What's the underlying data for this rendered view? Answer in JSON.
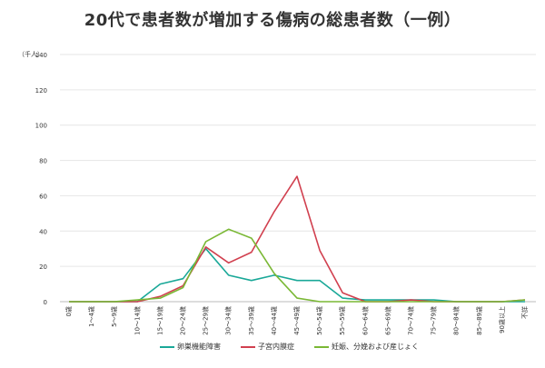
{
  "chart_data": {
    "type": "line",
    "title": "20代で患者数が増加する傷病の総患者数（一例）",
    "yunit": "（千人）",
    "ylim": [
      0,
      140
    ],
    "yticks": [
      0,
      20,
      40,
      60,
      80,
      100,
      120,
      140
    ],
    "grid": true,
    "legend_position": "bottom",
    "categories": [
      "0歳",
      "1〜4歳",
      "5〜9歳",
      "10〜14歳",
      "15〜19歳",
      "20〜24歳",
      "25〜29歳",
      "30〜34歳",
      "35〜39歳",
      "40〜44歳",
      "45〜49歳",
      "50〜54歳",
      "55〜59歳",
      "60〜64歳",
      "65〜69歳",
      "70〜74歳",
      "75〜79歳",
      "80〜84歳",
      "85〜89歳",
      "90歳以上",
      "不詳"
    ],
    "series": [
      {
        "name": "卵巣機能障害",
        "color": "#1aa898",
        "values": [
          0,
          0,
          0,
          0,
          10,
          13,
          30,
          15,
          12,
          15,
          12,
          12,
          2,
          1,
          1,
          1,
          1,
          0,
          0,
          0,
          0
        ]
      },
      {
        "name": "子宮内膜症",
        "color": "#d1404f",
        "values": [
          0,
          0,
          0,
          0,
          3,
          9,
          31,
          22,
          28,
          51,
          71,
          29,
          5,
          0,
          0,
          1,
          0,
          0,
          0,
          0,
          1
        ]
      },
      {
        "name": "妊娠、分娩および産じょく",
        "color": "#7ab835",
        "values": [
          0,
          0,
          0,
          1,
          2,
          8,
          34,
          41,
          36,
          16,
          2,
          0,
          0,
          0,
          0,
          0,
          0,
          0,
          0,
          0,
          1
        ]
      }
    ]
  }
}
